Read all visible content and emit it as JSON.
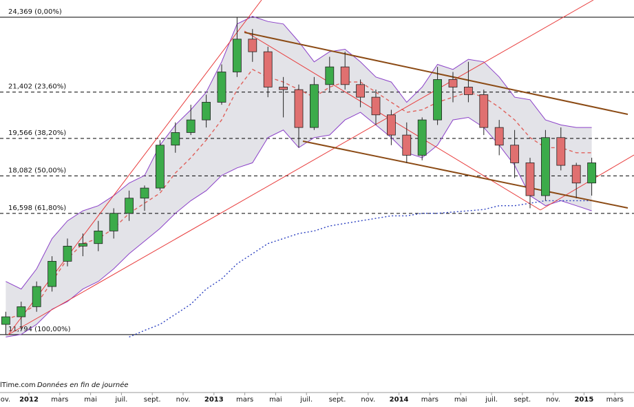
{
  "chart_data": {
    "type": "candlestick",
    "categories": [
      "ov.",
      null,
      "2012",
      null,
      "mars",
      null,
      "mai",
      null,
      "juil.",
      null,
      "sept.",
      null,
      "nov.",
      null,
      "2013",
      null,
      "mars",
      null,
      "mai",
      null,
      "juil.",
      null,
      "sept.",
      null,
      "nov.",
      null,
      "2014",
      null,
      "mars",
      null,
      "mai",
      null,
      "juil.",
      null,
      "sept.",
      null,
      "nov.",
      null,
      "2015",
      null,
      "mars"
    ],
    "open": [
      12.2,
      12.5,
      12.9,
      13.7,
      14.7,
      15.3,
      15.4,
      15.9,
      16.6,
      17.2,
      17.6,
      19.3,
      19.8,
      20.3,
      21.0,
      22.2,
      23.5,
      23.0,
      21.6,
      21.5,
      20.0,
      21.7,
      22.4,
      21.7,
      21.2,
      20.5,
      19.7,
      18.9,
      20.3,
      21.9,
      21.6,
      21.3,
      20.0,
      19.3,
      18.6,
      17.3,
      19.6,
      18.5,
      17.8,
      null,
      null
    ],
    "high": [
      12.7,
      13.1,
      13.9,
      14.9,
      15.6,
      15.8,
      16.3,
      16.8,
      17.5,
      17.7,
      19.5,
      20.2,
      20.9,
      21.3,
      22.5,
      24.369,
      23.9,
      23.2,
      22.0,
      21.7,
      22.0,
      22.8,
      23.0,
      21.9,
      21.5,
      20.7,
      20.2,
      20.4,
      22.4,
      22.2,
      22.6,
      21.5,
      20.3,
      19.9,
      18.8,
      19.9,
      20.0,
      18.6,
      18.8,
      null,
      null
    ],
    "low": [
      11.794,
      12.0,
      12.7,
      13.5,
      14.5,
      14.9,
      15.1,
      15.6,
      16.3,
      16.7,
      17.5,
      19.0,
      19.7,
      20.0,
      20.9,
      22.0,
      22.6,
      21.2,
      20.4,
      19.2,
      19.9,
      21.4,
      21.5,
      20.8,
      20.1,
      19.3,
      18.6,
      18.7,
      20.1,
      21.0,
      21.0,
      19.7,
      18.9,
      18.0,
      16.8,
      17.1,
      18.3,
      17.2,
      17.3,
      null,
      null
    ],
    "close": [
      12.5,
      12.9,
      13.7,
      14.7,
      15.3,
      15.4,
      15.9,
      16.6,
      17.2,
      17.6,
      19.3,
      19.8,
      20.3,
      21.0,
      22.2,
      23.5,
      23.0,
      21.6,
      21.5,
      20.0,
      21.7,
      22.4,
      21.7,
      21.2,
      20.5,
      19.7,
      18.9,
      20.3,
      21.9,
      21.6,
      21.3,
      20.0,
      19.3,
      18.6,
      17.3,
      19.6,
      18.5,
      17.8,
      18.6,
      null,
      null
    ],
    "up_color": "#3cab4a",
    "down_color": "#e07070",
    "band_fill": "#dcdce2",
    "series": [
      {
        "color": "#8a3fc8",
        "style": "solid",
        "values": [
          13.9,
          13.6,
          14.4,
          15.6,
          16.3,
          16.7,
          16.9,
          17.3,
          17.8,
          18.1,
          19.3,
          20.1,
          20.7,
          21.4,
          22.6,
          24.1,
          24.4,
          24.2,
          24.1,
          23.4,
          22.6,
          23.0,
          23.1,
          22.6,
          22.0,
          21.8,
          21.0,
          21.6,
          22.5,
          22.3,
          22.7,
          22.6,
          22.0,
          21.2,
          21.1,
          20.3,
          20.1,
          20.0,
          20.0,
          null,
          null
        ]
      },
      {
        "color": "#8a3fc8",
        "style": "solid",
        "values": [
          11.7,
          11.8,
          12.2,
          12.8,
          13.1,
          13.6,
          13.9,
          14.4,
          15.0,
          15.5,
          16.0,
          16.6,
          17.1,
          17.5,
          18.1,
          18.4,
          18.6,
          19.6,
          19.9,
          19.2,
          19.6,
          19.7,
          20.3,
          20.6,
          20.1,
          19.6,
          19.0,
          18.8,
          19.3,
          20.3,
          20.4,
          20.0,
          19.3,
          18.5,
          17.3,
          16.9,
          17.1,
          16.9,
          16.7,
          null,
          null
        ]
      },
      {
        "color": "#e0605a",
        "style": "dashed",
        "values": [
          12.4,
          12.6,
          13.0,
          13.9,
          14.8,
          15.4,
          15.6,
          16.0,
          16.6,
          17.0,
          17.4,
          18.2,
          18.8,
          19.5,
          20.3,
          21.5,
          22.3,
          22.0,
          21.8,
          21.5,
          21.2,
          21.6,
          21.8,
          21.8,
          21.4,
          21.0,
          20.6,
          20.7,
          21.0,
          21.2,
          21.4,
          21.2,
          20.8,
          20.3,
          19.6,
          19.2,
          19.2,
          19.0,
          19.0,
          null,
          null
        ]
      },
      {
        "color": "#2a3fc0",
        "style": "dotted",
        "values": [
          null,
          null,
          null,
          null,
          null,
          null,
          null,
          null,
          11.7,
          11.96,
          12.2,
          12.6,
          13.0,
          13.6,
          14.0,
          14.6,
          15.0,
          15.4,
          15.6,
          15.8,
          15.9,
          16.1,
          16.2,
          16.3,
          16.4,
          16.5,
          16.5,
          16.6,
          16.6,
          16.65,
          16.7,
          16.75,
          16.9,
          16.9,
          17.0,
          17.1,
          17.1,
          17.1,
          17.1,
          null,
          null
        ]
      }
    ],
    "levels": [
      {
        "value": 24.369,
        "label": "24,369 (0,00%)",
        "style": "solid"
      },
      {
        "value": 21.402,
        "label": "21,402 (23,60%)",
        "style": "dashed"
      },
      {
        "value": 19.566,
        "label": "19,566 (38,20%)",
        "style": "dashed"
      },
      {
        "value": 18.082,
        "label": "18,082 (50,00%)",
        "style": "dashed"
      },
      {
        "value": 16.598,
        "label": "16,598 (61,80%)",
        "style": "dashed"
      },
      {
        "value": 11.794,
        "label": "11,794 (100,00%)",
        "style": "solid"
      }
    ],
    "ylim": [
      9.5,
      25.05
    ],
    "grid": false,
    "source": "lTime.com",
    "note": "Données en fin de journée"
  }
}
